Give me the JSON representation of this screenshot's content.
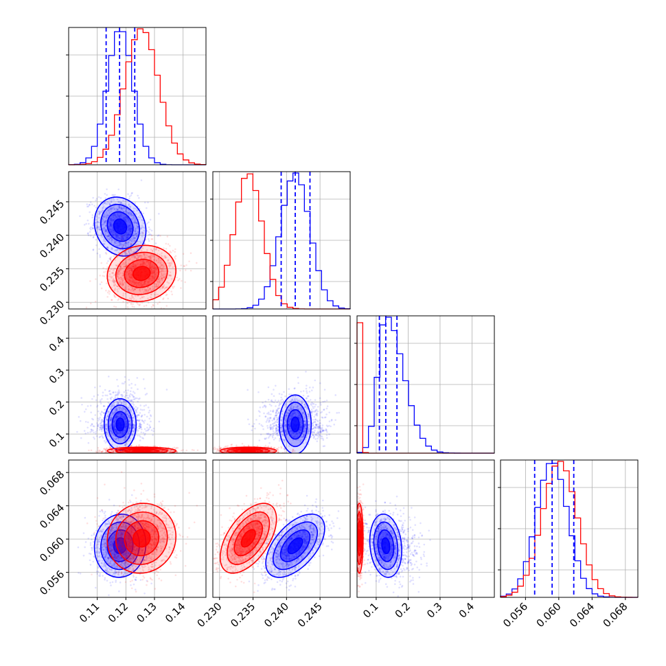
{
  "chart_data": {
    "type": "scatter",
    "subtype": "corner-plot",
    "title": "",
    "colors": {
      "blue": "#0000ff",
      "red": "#ff0000",
      "grid": "#b0b0b0"
    },
    "grid": true,
    "legend": null,
    "parameters": [
      {
        "ticks": [
          "0.11",
          "0.12",
          "0.13",
          "0.14"
        ],
        "range": [
          0.1,
          0.148
        ]
      },
      {
        "ticks": [
          "0.230",
          "0.235",
          "0.240",
          "0.245"
        ],
        "range": [
          0.229,
          0.2495
        ]
      },
      {
        "ticks": [
          "0.1",
          "0.2",
          "0.3",
          "0.4"
        ],
        "range": [
          0.04,
          0.47
        ]
      },
      {
        "ticks": [
          "0.056",
          "0.060",
          "0.064",
          "0.068"
        ],
        "range": [
          0.053,
          0.0695
        ]
      }
    ],
    "series": [
      {
        "color": "blue",
        "mean": [
          0.118,
          0.2413,
          0.13,
          0.0592
        ],
        "std": [
          0.0045,
          0.0022,
          0.025,
          0.0019
        ],
        "quantiles": [
          [
            0.1131,
            0.1178,
            0.1231
          ],
          [
            0.2392,
            0.2413,
            0.2435
          ],
          [
            0.11,
            0.13,
            0.165
          ],
          [
            0.0571,
            0.0592,
            0.0618
          ]
        ],
        "correlations": [
          [
            0,
            1,
            -0.15
          ],
          [
            0,
            3,
            0.05
          ],
          [
            1,
            3,
            0.55
          ],
          [
            2,
            3,
            -0.15
          ],
          [
            0,
            2,
            0.0
          ],
          [
            1,
            2,
            0.0
          ]
        ]
      },
      {
        "color": "red",
        "mean": [
          0.1255,
          0.2343,
          0.047,
          0.0601
        ],
        "std": [
          0.006,
          0.0021,
          0.006,
          0.0021
        ],
        "correlations": [
          [
            0,
            1,
            0.1
          ],
          [
            0,
            3,
            0.05
          ],
          [
            1,
            3,
            0.55
          ],
          [
            0,
            2,
            0.0
          ],
          [
            1,
            2,
            0.0
          ],
          [
            2,
            3,
            0.0
          ]
        ]
      }
    ]
  }
}
